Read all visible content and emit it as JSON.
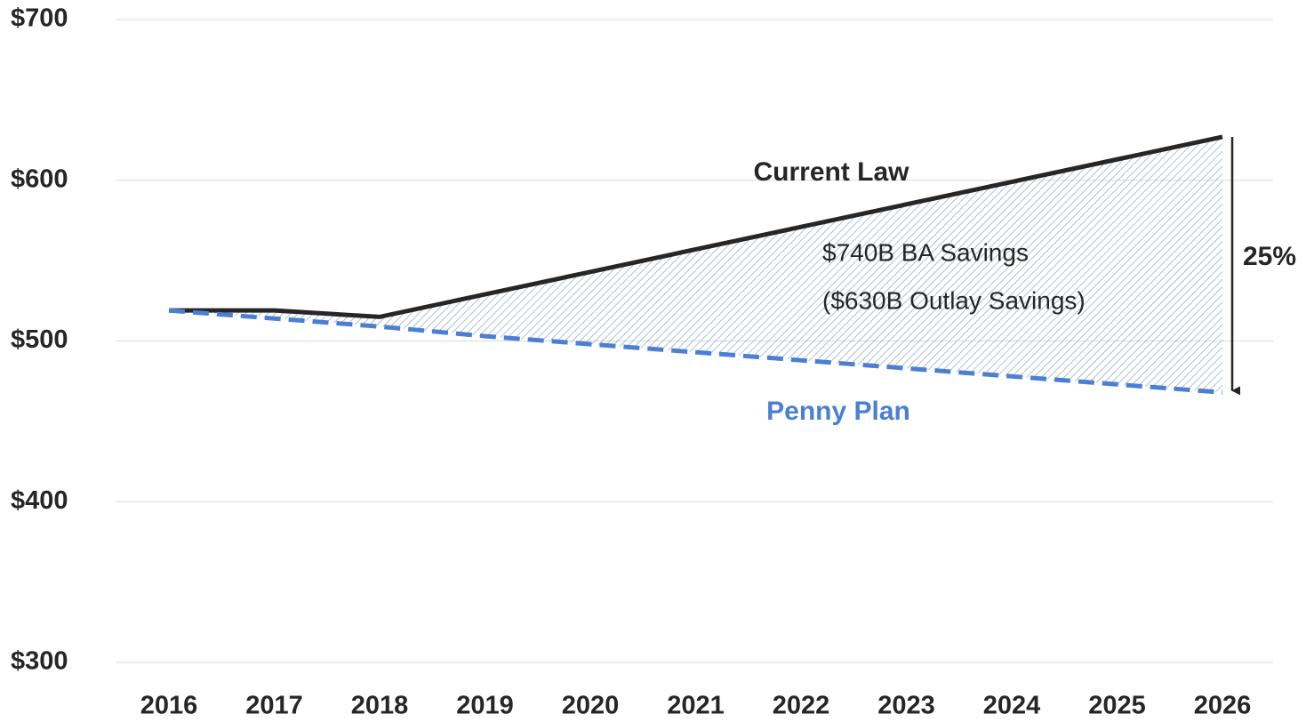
{
  "chart_data": {
    "type": "line",
    "categories": [
      "2016",
      "2017",
      "2018",
      "2019",
      "2020",
      "2021",
      "2022",
      "2023",
      "2024",
      "2025",
      "2026"
    ],
    "series": [
      {
        "name": "Current Law",
        "color": "#262626",
        "values": [
          519,
          519,
          515,
          529,
          543,
          557,
          571,
          585,
          599,
          613,
          627
        ]
      },
      {
        "name": "Penny Plan",
        "color": "#4a7fd4",
        "values": [
          519,
          514,
          509,
          503,
          498,
          493,
          488,
          483,
          478,
          473,
          468
        ]
      }
    ],
    "ylim": [
      300,
      700
    ],
    "yticks": [
      {
        "value": 300,
        "label": "$300"
      },
      {
        "value": 400,
        "label": "$400"
      },
      {
        "value": 500,
        "label": "$500"
      },
      {
        "value": 600,
        "label": "$600"
      },
      {
        "value": 700,
        "label": "$700"
      }
    ],
    "grid": true,
    "annotations": [
      "$740B BA Savings",
      "($630B Outlay Savings)",
      "25%"
    ]
  }
}
